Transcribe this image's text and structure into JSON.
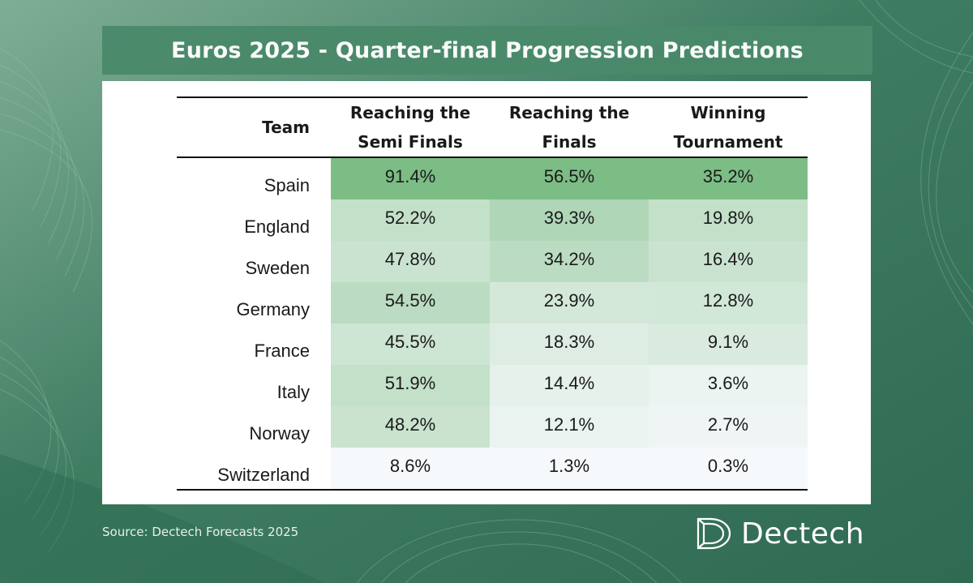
{
  "title": "Euros 2025 - Quarter-final Progression Predictions",
  "source": "Source: Dectech Forecasts 2025",
  "logo_text": "Dectech",
  "logo_icon": "dectech-d-logo-icon",
  "colors": {
    "background": "#3f7d62",
    "title_bar": "#4a8a6b",
    "heat_high": "#7cbd85",
    "heat_low": "#f6f9fb"
  },
  "chart_data": {
    "type": "table",
    "columns": [
      "Team",
      "Reaching the Semi Finals",
      "Reaching the Finals",
      "Winning Tournament"
    ],
    "header_lines": [
      [
        "Team"
      ],
      [
        "Reaching the",
        "Semi Finals"
      ],
      [
        "Reaching the",
        "Finals"
      ],
      [
        "Winning",
        "Tournament"
      ]
    ],
    "rows": [
      {
        "team": "Spain",
        "values": [
          "91.4%",
          "56.5%",
          "35.2%"
        ],
        "shade": [
          1.0,
          1.0,
          1.0
        ]
      },
      {
        "team": "England",
        "values": [
          "52.2%",
          "39.3%",
          "19.8%"
        ],
        "shade": [
          0.42,
          0.58,
          0.42
        ]
      },
      {
        "team": "Sweden",
        "values": [
          "47.8%",
          "34.2%",
          "16.4%"
        ],
        "shade": [
          0.36,
          0.48,
          0.36
        ]
      },
      {
        "team": "Germany",
        "values": [
          "54.5%",
          "23.9%",
          "12.8%"
        ],
        "shade": [
          0.48,
          0.28,
          0.3
        ]
      },
      {
        "team": "France",
        "values": [
          "45.5%",
          "18.3%",
          "9.1%"
        ],
        "shade": [
          0.34,
          0.2,
          0.24
        ]
      },
      {
        "team": "Italy",
        "values": [
          "51.9%",
          "14.4%",
          "3.6%"
        ],
        "shade": [
          0.42,
          0.14,
          0.08
        ]
      },
      {
        "team": "Norway",
        "values": [
          "48.2%",
          "12.1%",
          "2.7%"
        ],
        "shade": [
          0.37,
          0.1,
          0.06
        ]
      },
      {
        "team": "Switzerland",
        "values": [
          "8.6%",
          "1.3%",
          "0.3%"
        ],
        "shade": [
          0.0,
          0.0,
          0.0
        ]
      }
    ]
  }
}
